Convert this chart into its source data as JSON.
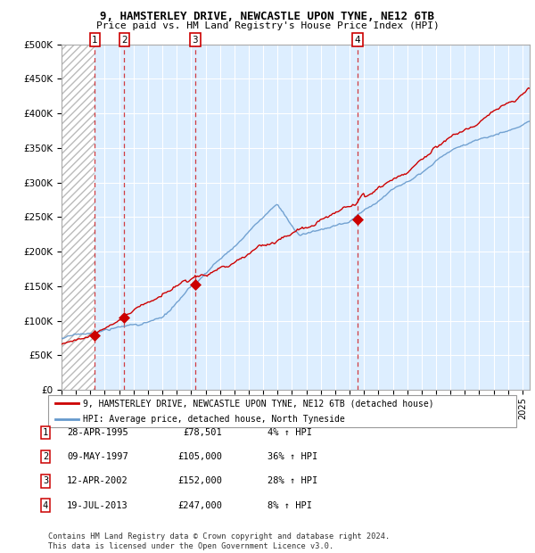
{
  "title1": "9, HAMSTERLEY DRIVE, NEWCASTLE UPON TYNE, NE12 6TB",
  "title2": "Price paid vs. HM Land Registry's House Price Index (HPI)",
  "legend_label1": "9, HAMSTERLEY DRIVE, NEWCASTLE UPON TYNE, NE12 6TB (detached house)",
  "legend_label2": "HPI: Average price, detached house, North Tyneside",
  "hpi_color": "#6699cc",
  "price_color": "#cc0000",
  "sale_color": "#cc0000",
  "transactions": [
    {
      "num": 1,
      "date_num": 1995.32,
      "price": 78501,
      "label": "1",
      "date_str": "28-APR-1995",
      "price_str": "£78,501",
      "hpi_str": "4% ↑ HPI"
    },
    {
      "num": 2,
      "date_num": 1997.36,
      "price": 105000,
      "label": "2",
      "date_str": "09-MAY-1997",
      "price_str": "£105,000",
      "hpi_str": "36% ↑ HPI"
    },
    {
      "num": 3,
      "date_num": 2002.28,
      "price": 152000,
      "label": "3",
      "date_str": "12-APR-2002",
      "price_str": "£152,000",
      "hpi_str": "28% ↑ HPI"
    },
    {
      "num": 4,
      "date_num": 2013.55,
      "price": 247000,
      "label": "4",
      "date_str": "19-JUL-2013",
      "price_str": "£247,000",
      "hpi_str": "8% ↑ HPI"
    }
  ],
  "ylim": [
    0,
    500000
  ],
  "xlim_start": 1993.0,
  "xlim_end": 2025.5,
  "footer": "Contains HM Land Registry data © Crown copyright and database right 2024.\nThis data is licensed under the Open Government Licence v3.0.",
  "hatch_color": "#bbbbbb",
  "bg_color": "#ddeeff",
  "chart_bg": "#ddeeff"
}
